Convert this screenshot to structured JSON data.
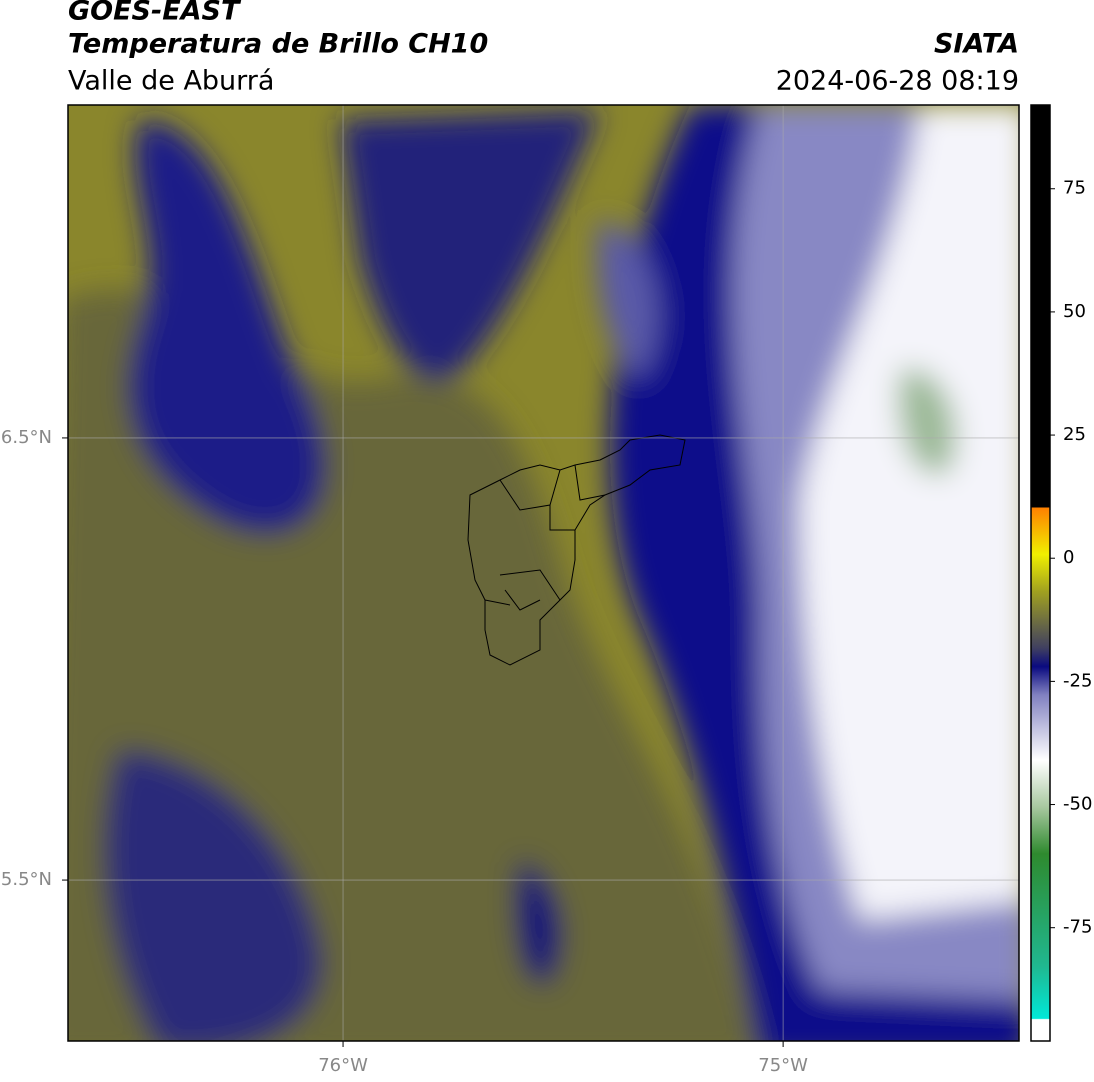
{
  "header": {
    "title": "GOES-EAST",
    "subtitle": "Temperatura de Brillo CH10",
    "region": "Valle de Aburrá",
    "source": "SIATA",
    "timestamp": "2024-06-28 08:19"
  },
  "map": {
    "xlim": [
      -76.625,
      -74.464
    ],
    "ylim": [
      5.136,
      7.253
    ],
    "xticks": [
      {
        "value": -76,
        "label": "76°W"
      },
      {
        "value": -75,
        "label": "75°W"
      }
    ],
    "yticks": [
      {
        "value": 5.5,
        "label": "5.5°N"
      },
      {
        "value": 6.5,
        "label": "6.5°N"
      }
    ]
  },
  "colorbar": {
    "lim": [
      -98,
      92
    ],
    "ticks": [
      -75,
      -50,
      -25,
      0,
      25,
      50,
      75
    ]
  }
}
